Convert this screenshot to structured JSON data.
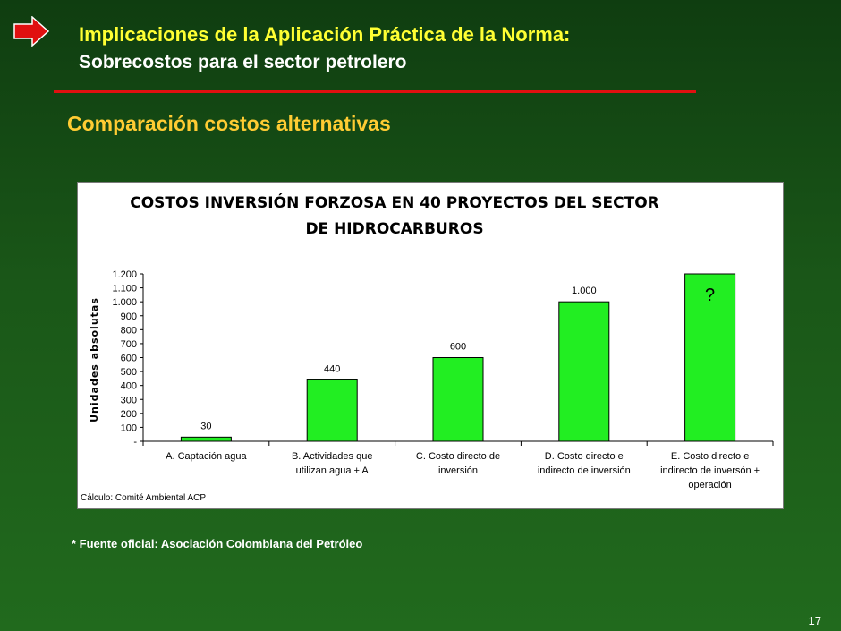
{
  "slide": {
    "title_line1": "Implicaciones de la Aplicación Práctica de la Norma:",
    "title_line2": "Sobrecostos para el sector petrolero",
    "subtitle": "Comparación costos alternativas",
    "footnote": "* Fuente oficial: Asociación Colombiana del Petróleo",
    "page_number": "17"
  },
  "colors": {
    "arrow": "#e01010",
    "rule": "#e01010",
    "bar_fill": "#22ee22",
    "bar_stroke": "#000000"
  },
  "chart_data": {
    "type": "bar",
    "title_lines": [
      "COSTOS INVERSIÓN FORZOSA EN 40 PROYECTOS DEL SECTOR",
      "DE HIDROCARBUROS"
    ],
    "ylabel": "Unidades absolutas",
    "xlabel": "",
    "ylim": [
      0,
      1200
    ],
    "yticks": [
      "-",
      "100",
      "200",
      "300",
      "400",
      "500",
      "600",
      "700",
      "800",
      "900",
      "1.000",
      "1.100",
      "1.200"
    ],
    "categories": [
      [
        "A. Captación agua"
      ],
      [
        "B. Actividades que",
        "utilizan agua + A"
      ],
      [
        "C. Costo directo de",
        "inversión"
      ],
      [
        "D. Costo directo e",
        "indirecto de inversión"
      ],
      [
        "E. Costo directo e",
        "indirecto de inversón +",
        "operación"
      ]
    ],
    "values": [
      30,
      440,
      600,
      1000,
      1200
    ],
    "data_labels": [
      "30",
      "440",
      "600",
      "1.000",
      "?"
    ],
    "grid": false,
    "legend": "none",
    "source_note": "Cálculo: Comité Ambiental ACP"
  }
}
